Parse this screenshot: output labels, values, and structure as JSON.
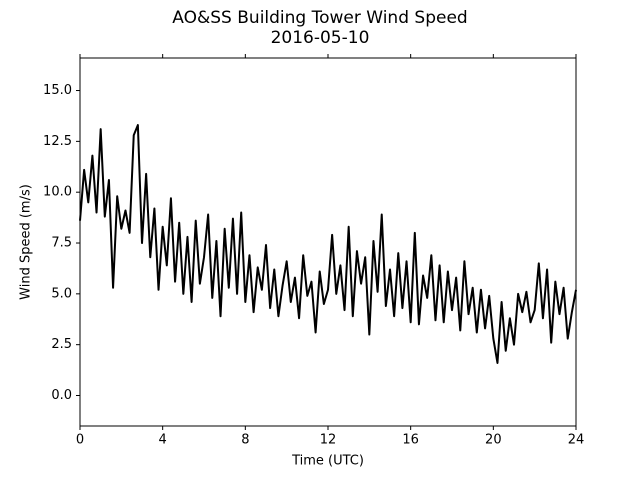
{
  "chart_data": {
    "type": "line",
    "title": "AO&SS Building Tower Wind Speed",
    "subtitle": "2016-05-10",
    "x_label": "Time (UTC)",
    "y_label": "Wind Speed (m/s)",
    "xlim": [
      0,
      24
    ],
    "ylim": [
      -1.5,
      16.6
    ],
    "xticks": [
      0,
      4,
      8,
      12,
      16,
      20,
      24
    ],
    "yticks": [
      {
        "value": 0,
        "label": "0.0"
      },
      {
        "value": 2.5,
        "label": "2.5"
      },
      {
        "value": 5,
        "label": "5.0"
      },
      {
        "value": 7.5,
        "label": "7.5"
      },
      {
        "value": 10,
        "label": "10.0"
      },
      {
        "value": 12.5,
        "label": "12.5"
      },
      {
        "value": 15,
        "label": "15.0"
      }
    ],
    "grid": false,
    "x": [
      0,
      0.2,
      0.4,
      0.6,
      0.8,
      1,
      1.2,
      1.4,
      1.6,
      1.8,
      2,
      2.2,
      2.4,
      2.6,
      2.8,
      3,
      3.2,
      3.4,
      3.6,
      3.8,
      4,
      4.2,
      4.4,
      4.6,
      4.8,
      5,
      5.2,
      5.4,
      5.6,
      5.8,
      6,
      6.2,
      6.4,
      6.6,
      6.8,
      7,
      7.2,
      7.4,
      7.6,
      7.8,
      8,
      8.2,
      8.4,
      8.6,
      8.8,
      9,
      9.2,
      9.4,
      9.6,
      9.8,
      10,
      10.2,
      10.4,
      10.6,
      10.8,
      11,
      11.2,
      11.4,
      11.6,
      11.8,
      12,
      12.2,
      12.4,
      12.6,
      12.8,
      13,
      13.2,
      13.4,
      13.6,
      13.8,
      14,
      14.2,
      14.4,
      14.6,
      14.8,
      15,
      15.2,
      15.4,
      15.6,
      15.8,
      16,
      16.2,
      16.4,
      16.6,
      16.8,
      17,
      17.2,
      17.4,
      17.6,
      17.8,
      18,
      18.2,
      18.4,
      18.6,
      18.8,
      19,
      19.2,
      19.4,
      19.6,
      19.8,
      20,
      20.2,
      20.4,
      20.6,
      20.8,
      21,
      21.2,
      21.4,
      21.6,
      21.8,
      22,
      22.2,
      22.4,
      22.6,
      22.8,
      23,
      23.2,
      23.4,
      23.6,
      23.8,
      24
    ],
    "series": [
      {
        "color": "#000000",
        "values": [
          8.6,
          11.1,
          9.5,
          11.8,
          9.0,
          13.1,
          8.8,
          10.6,
          5.3,
          9.8,
          8.2,
          9.1,
          8.0,
          12.8,
          13.3,
          7.5,
          10.9,
          6.8,
          9.2,
          5.2,
          8.3,
          6.4,
          9.7,
          5.6,
          8.5,
          5.0,
          7.8,
          4.6,
          8.6,
          5.5,
          6.8,
          8.9,
          4.8,
          7.6,
          3.9,
          8.2,
          5.3,
          8.7,
          5.0,
          9.0,
          4.6,
          6.9,
          4.1,
          6.3,
          5.2,
          7.4,
          4.3,
          6.2,
          3.9,
          5.4,
          6.6,
          4.6,
          5.8,
          3.8,
          6.9,
          4.9,
          5.6,
          3.1,
          6.1,
          4.5,
          5.2,
          7.9,
          5.0,
          6.4,
          4.2,
          8.3,
          3.9,
          7.1,
          5.5,
          6.8,
          3.0,
          7.6,
          5.1,
          8.9,
          4.4,
          6.2,
          3.9,
          7.0,
          4.3,
          6.6,
          3.6,
          8.0,
          3.5,
          5.9,
          4.8,
          6.9,
          3.7,
          6.4,
          3.6,
          6.1,
          4.2,
          5.8,
          3.2,
          6.6,
          4.0,
          5.3,
          3.1,
          5.2,
          3.3,
          4.9,
          2.8,
          1.6,
          4.6,
          2.2,
          3.8,
          2.5,
          5.0,
          4.1,
          5.1,
          3.6,
          4.2,
          6.5,
          3.8,
          6.2,
          2.6,
          5.6,
          4.0,
          5.3,
          2.8,
          4.1,
          5.2
        ]
      }
    ]
  }
}
